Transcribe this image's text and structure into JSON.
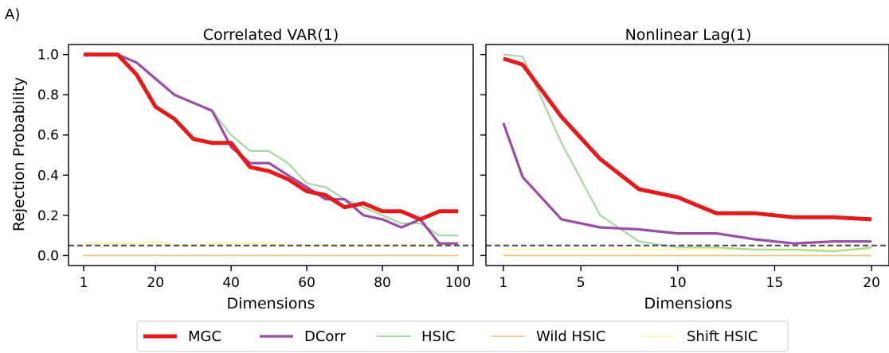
{
  "panel_label": "A)",
  "shared_ylabel": "Rejection Probability",
  "colors": {
    "MGC": "#e41a1c",
    "DCorr": "#984ea3",
    "HSIC": "#4daf4a",
    "Wild HSIC": "#ff7f00",
    "Shift HSIC": "#ffff33",
    "reference_line": "#444444"
  },
  "legend": {
    "placement": "bottom-center",
    "items": [
      "MGC",
      "DCorr",
      "HSIC",
      "Wild HSIC",
      "Shift HSIC"
    ]
  },
  "chart_data": [
    {
      "type": "line",
      "title": "Correlated VAR(1)",
      "xlabel": "Dimensions",
      "ylabel": "Rejection Probability",
      "xlim": [
        -3,
        104
      ],
      "ylim": [
        -0.05,
        1.05
      ],
      "xticks": [
        1,
        20,
        40,
        60,
        80,
        100
      ],
      "yticks": [
        0.0,
        0.2,
        0.4,
        0.6,
        0.8,
        1.0
      ],
      "ytick_labels": [
        "0.0",
        "0.2",
        "0.4",
        "0.6",
        "0.8",
        "1.0"
      ],
      "reference_line": 0.05,
      "grid": false,
      "x": [
        1,
        5,
        10,
        15,
        20,
        25,
        30,
        35,
        40,
        45,
        50,
        55,
        60,
        65,
        70,
        75,
        80,
        85,
        90,
        95,
        100
      ],
      "series": [
        {
          "name": "MGC",
          "values": [
            1.0,
            1.0,
            1.0,
            0.9,
            0.74,
            0.68,
            0.58,
            0.56,
            0.56,
            0.44,
            0.42,
            0.38,
            0.32,
            0.3,
            0.24,
            0.26,
            0.22,
            0.22,
            0.18,
            0.22,
            0.22
          ]
        },
        {
          "name": "DCorr",
          "values": [
            1.0,
            1.0,
            1.0,
            0.96,
            0.88,
            0.8,
            0.76,
            0.72,
            0.54,
            0.46,
            0.46,
            0.4,
            0.34,
            0.28,
            0.28,
            0.2,
            0.18,
            0.14,
            0.18,
            0.06,
            0.06
          ]
        },
        {
          "name": "HSIC",
          "values": [
            1.0,
            1.0,
            1.0,
            0.96,
            0.88,
            0.8,
            0.76,
            0.72,
            0.6,
            0.52,
            0.52,
            0.46,
            0.36,
            0.34,
            0.28,
            0.24,
            0.2,
            0.16,
            0.16,
            0.1,
            0.1
          ]
        },
        {
          "name": "Wild HSIC",
          "values": [
            0.0,
            0.0,
            0.0,
            0.0,
            0.0,
            0.0,
            0.0,
            0.0,
            0.0,
            0.0,
            0.0,
            0.0,
            0.0,
            0.0,
            0.0,
            0.0,
            0.0,
            0.0,
            0.0,
            0.0,
            0.0
          ]
        },
        {
          "name": "Shift HSIC",
          "values": [
            0.06,
            0.06,
            0.06,
            0.06,
            0.07,
            0.05,
            0.05,
            0.06,
            0.06,
            0.06,
            0.06,
            0.05,
            0.05,
            0.05,
            0.05,
            0.05,
            0.05,
            0.05,
            0.05,
            0.05,
            0.05
          ]
        }
      ]
    },
    {
      "type": "line",
      "title": "Nonlinear Lag(1)",
      "xlabel": "Dimensions",
      "ylabel": "",
      "xlim": [
        0.1,
        20.9
      ],
      "ylim": [
        -0.05,
        1.05
      ],
      "xticks": [
        1,
        5,
        10,
        15,
        20
      ],
      "yticks": [
        0.0,
        0.2,
        0.4,
        0.6,
        0.8,
        1.0
      ],
      "reference_line": 0.05,
      "grid": false,
      "x": [
        1,
        2,
        4,
        6,
        8,
        10,
        12,
        14,
        16,
        18,
        20
      ],
      "series": [
        {
          "name": "MGC",
          "values": [
            0.98,
            0.95,
            0.69,
            0.48,
            0.33,
            0.29,
            0.21,
            0.21,
            0.19,
            0.19,
            0.18
          ]
        },
        {
          "name": "DCorr",
          "values": [
            0.66,
            0.39,
            0.18,
            0.14,
            0.13,
            0.11,
            0.11,
            0.08,
            0.06,
            0.07,
            0.07
          ]
        },
        {
          "name": "HSIC",
          "values": [
            1.0,
            0.99,
            0.56,
            0.2,
            0.07,
            0.04,
            0.04,
            0.03,
            0.03,
            0.02,
            0.04
          ]
        },
        {
          "name": "Wild HSIC",
          "values": [
            0.0,
            0.0,
            0.0,
            0.0,
            0.0,
            0.0,
            0.0,
            0.0,
            0.0,
            0.0,
            0.0
          ]
        },
        {
          "name": "Shift HSIC",
          "values": [
            0.03,
            0.03,
            0.03,
            0.03,
            0.03,
            0.03,
            0.03,
            0.03,
            0.03,
            0.03,
            0.03
          ]
        }
      ]
    }
  ]
}
